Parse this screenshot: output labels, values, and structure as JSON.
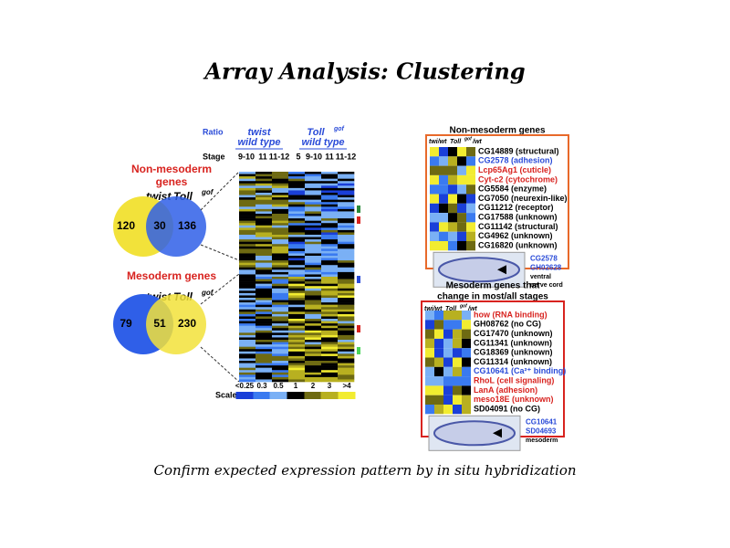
{
  "title": "Array Analysis: Clustering",
  "caption": "Confirm expected expression pattern by in situ hybridization",
  "figure": {
    "venns": [
      {
        "label": [
          "Non-mesoderm",
          "genes"
        ],
        "left_name": "twist",
        "right_name": "Toll",
        "right_sup": "gof",
        "left_color": "#f2e23a",
        "right_color": "#2f5fe8",
        "counts": [
          "120",
          "30",
          "136"
        ]
      },
      {
        "label": [
          "Mesoderm genes"
        ],
        "left_name": "twist",
        "right_name": "Toll",
        "right_sup": "gof",
        "left_color": "#2f5fe8",
        "right_color": "#f2e23a",
        "counts": [
          "79",
          "51",
          "230"
        ]
      }
    ],
    "heatmap": {
      "ratio_label": "Ratio",
      "stage_label": "Stage",
      "groups": [
        {
          "name": "twist",
          "sup": "",
          "sub": "wild type",
          "stages": [
            "9-10",
            "11",
            "11-12"
          ]
        },
        {
          "name": "Toll",
          "sup": "gof",
          "sub": "wild type",
          "stages": [
            "5",
            "9-10",
            "11",
            "11-12"
          ]
        }
      ],
      "scale_label": "Scale",
      "scale": [
        "<0.25",
        "0.3",
        "0.5",
        "1",
        "2",
        "3",
        ">4"
      ]
    },
    "panels": [
      {
        "title": [
          "Non-mesoderm genes"
        ],
        "col_labels": [
          "twi/wt",
          "Toll",
          "gof",
          "/wt"
        ],
        "border": "#e8692a",
        "genes": [
          {
            "text": "CG14889 (structural)",
            "color": "#000"
          },
          {
            "text": "CG2578 (adhesion)",
            "color": "#2a4bd8"
          },
          {
            "text": "Lcp65Ag1 (cuticle)",
            "color": "#d8231f"
          },
          {
            "text": "Cyt-c2 (cytochrome)",
            "color": "#d8231f"
          },
          {
            "text": "CG5584 (enzyme)",
            "color": "#000"
          },
          {
            "text": "CG7050 (neurexin-like)",
            "color": "#000"
          },
          {
            "text": "CG11212 (receptor)",
            "color": "#000"
          },
          {
            "text": "CG17588 (unknown)",
            "color": "#000"
          },
          {
            "text": "CG11142 (structural)",
            "color": "#000"
          },
          {
            "text": "CG4962 (unknown)",
            "color": "#000"
          },
          {
            "text": "CG16820 (unknown)",
            "color": "#000"
          }
        ],
        "image_labels": [
          "CG2578",
          "GH02628"
        ],
        "note": [
          "ventral",
          "nerve cord"
        ]
      },
      {
        "title": [
          "Mesoderm genes that",
          "change in most/all stages"
        ],
        "col_labels": [
          "twi/wt",
          "Toll",
          "gof",
          "/wt"
        ],
        "border": "#d8231f",
        "genes": [
          {
            "text": "how (RNA binding)",
            "color": "#d8231f"
          },
          {
            "text": "GH08762 (no CG)",
            "color": "#000"
          },
          {
            "text": "CG17470 (unknown)",
            "color": "#000"
          },
          {
            "text": "CG11341 (unknown)",
            "color": "#000"
          },
          {
            "text": "CG18369 (unknown)",
            "color": "#000"
          },
          {
            "text": "CG11314 (unknown)",
            "color": "#000"
          },
          {
            "text": "CG10641 (Ca²⁺ binding)",
            "color": "#2a4bd8"
          },
          {
            "text": "RhoL (cell signaling)",
            "color": "#d8231f"
          },
          {
            "text": "LanA (adhesion)",
            "color": "#d8231f"
          },
          {
            "text": "meso18E (unknown)",
            "color": "#d8231f"
          },
          {
            "text": "SD04091 (no CG)",
            "color": "#000"
          }
        ],
        "image_labels": [
          "CG10641",
          "SD04693"
        ],
        "note": [
          "mesoderm"
        ]
      }
    ]
  }
}
